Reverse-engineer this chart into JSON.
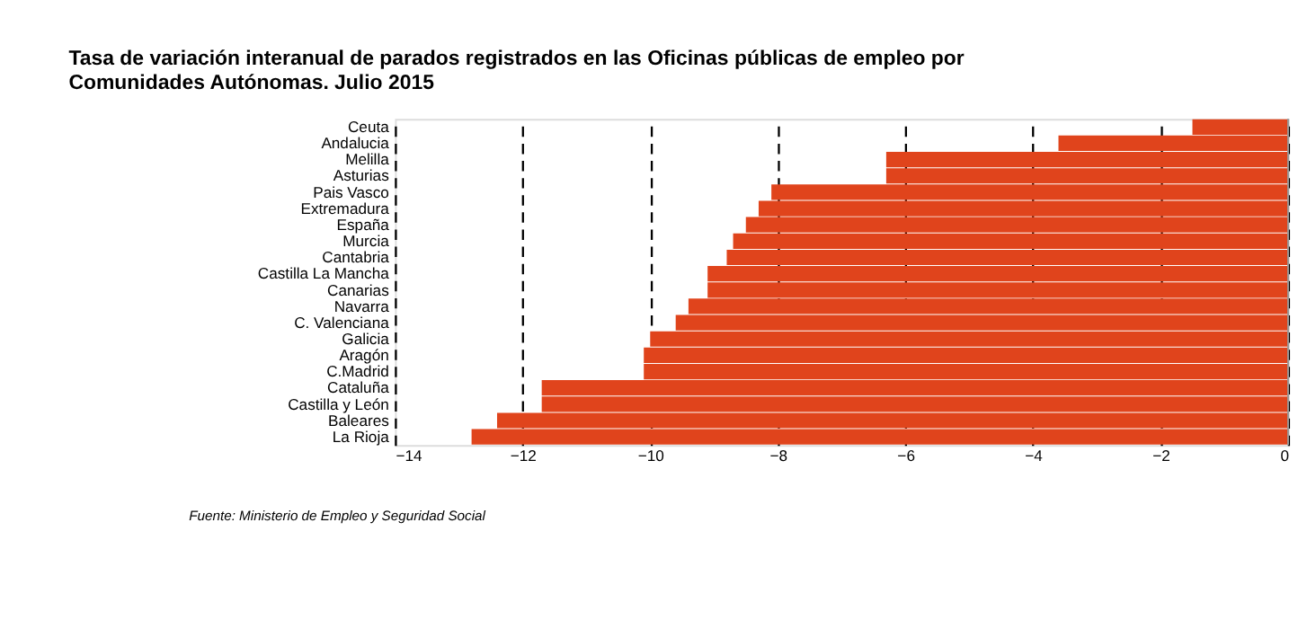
{
  "chart_data": {
    "type": "bar",
    "orientation": "horizontal",
    "title": [
      "Tasa de variación interanual de parados registrados en las Oficinas públicas de empleo por",
      "Comunidades Autónomas.  Julio 2015"
    ],
    "categories": [
      "Ceuta",
      "Andalucia",
      "Melilla",
      "Asturias",
      "Pais Vasco",
      "Extremadura",
      "España",
      "Murcia",
      "Cantabria",
      "Castilla La Mancha",
      "Canarias",
      "Navarra",
      "C. Valenciana",
      "Galicia",
      "Aragón",
      "C.Madrid",
      "Cataluña",
      "Castilla y León",
      "Baleares",
      "La Rioja"
    ],
    "values": [
      -1.5,
      -3.6,
      -6.3,
      -6.3,
      -8.1,
      -8.3,
      -8.5,
      -8.7,
      -8.8,
      -9.1,
      -9.1,
      -9.4,
      -9.6,
      -10.0,
      -10.1,
      -10.1,
      -11.7,
      -11.7,
      -12.4,
      -12.8
    ],
    "color": "#e0441c",
    "xlim": [
      -14,
      0
    ],
    "xticks": [
      -14,
      -12,
      -10,
      -8,
      -6,
      -4,
      -2,
      0
    ],
    "grid": "x",
    "annotations": [
      "Fuente: Ministerio de Empleo y Seguridad Social"
    ]
  }
}
